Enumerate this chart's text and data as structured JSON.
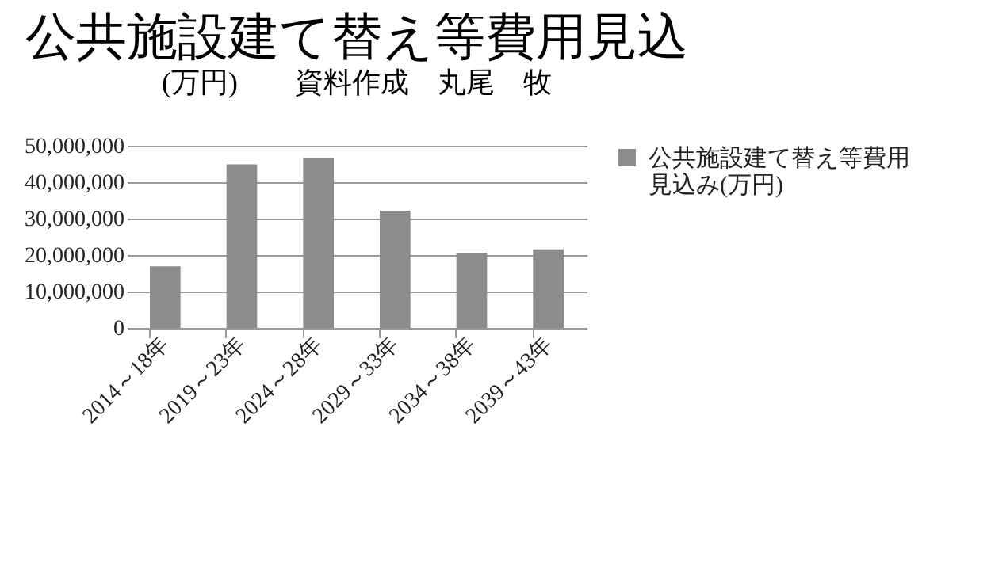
{
  "chart_data": {
    "type": "bar",
    "title": "公共施設建て替え等費用見込",
    "subtitle": "(万円)　　資料作成　丸尾　牧",
    "categories": [
      "2014～18年",
      "2019～23年",
      "2024～28年",
      "2029～33年",
      "2034～38年",
      "2039～43年"
    ],
    "series": [
      {
        "name": "公共施設建て替え等費用見込み(万円)",
        "color": "#8c8c8c",
        "values": [
          16900000,
          44900000,
          46600000,
          32200000,
          20600000,
          21600000
        ]
      }
    ],
    "ylim": [
      0,
      50000000
    ],
    "yticks": [
      {
        "value": 0,
        "label": "0"
      },
      {
        "value": 10000000,
        "label": "10,000,000"
      },
      {
        "value": 20000000,
        "label": "20,000,000"
      },
      {
        "value": 30000000,
        "label": "30,000,000"
      },
      {
        "value": 40000000,
        "label": "40,000,000"
      },
      {
        "value": 50000000,
        "label": "50,000,000"
      }
    ],
    "grid": "y",
    "legend": "right"
  }
}
